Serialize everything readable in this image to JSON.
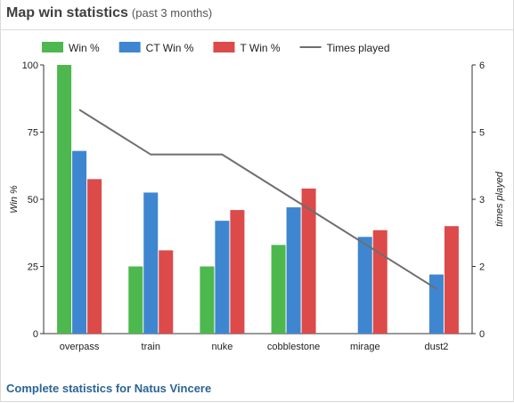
{
  "header": {
    "title": "Map win statistics",
    "subtitle": "(past 3 months)"
  },
  "footer": {
    "link_text": "Complete statistics for Natus Vincere"
  },
  "chart_data": {
    "type": "bar",
    "categories": [
      "overpass",
      "train",
      "nuke",
      "cobblestone",
      "mirage",
      "dust2"
    ],
    "series": [
      {
        "name": "Win %",
        "type": "bar",
        "color": "#4db84d",
        "values": [
          100,
          25,
          25,
          33,
          null,
          null
        ]
      },
      {
        "name": "CT Win %",
        "type": "bar",
        "color": "#3f86d0",
        "values": [
          68,
          52.5,
          42,
          47,
          36,
          22
        ]
      },
      {
        "name": "T Win %",
        "type": "bar",
        "color": "#dd4a4a",
        "values": [
          57.5,
          31,
          46,
          54,
          38.5,
          40
        ]
      },
      {
        "name": "Times played",
        "type": "line",
        "color": "#6e6e6e",
        "axis": "right",
        "values": [
          5,
          4,
          4,
          3,
          2,
          1
        ]
      }
    ],
    "ylabel": "Win %",
    "y2label": "times played",
    "ylim": [
      0,
      100
    ],
    "y2lim": [
      0,
      6
    ],
    "yticks": [
      "0",
      "25",
      "50",
      "75",
      "100"
    ],
    "y2ticks": [
      "0",
      "2",
      "3",
      "5",
      "6"
    ],
    "legend_position": "top",
    "grid": false
  }
}
